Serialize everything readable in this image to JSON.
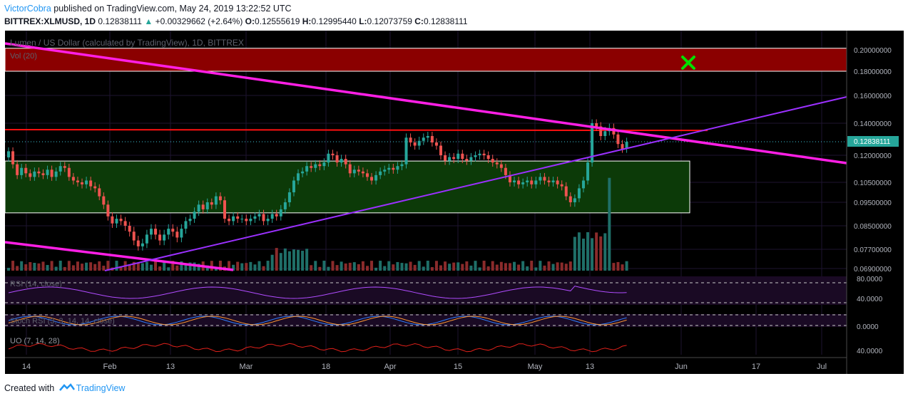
{
  "header": {
    "author": "VictorCobra",
    "published_text": "published on TradingView.com, May 24, 2019 13:22:52 UTC",
    "symbol_interval": "BITTREX:XLMUSD, 1D",
    "last_price": "0.12838111",
    "change_arrow": "▲",
    "change_text": "+0.00329662 (+2.64%)",
    "ohlc": [
      {
        "label": "O:",
        "value": "0.12555619"
      },
      {
        "label": "H:",
        "value": "0.12995440"
      },
      {
        "label": "L:",
        "value": "0.12073759"
      },
      {
        "label": "C:",
        "value": "0.12838111"
      }
    ]
  },
  "chart": {
    "title": "Lumen / US Dollar (calculated by TradingView), 1D, BITTREX",
    "vol_label": "Vol (20)",
    "rsi_label": "RSI (14, close)",
    "stoch_label": "Stoch RSI (3, 3, 14, 14, close)",
    "uo_label": "UO (7, 14, 28)",
    "price_badge": "0.12838111",
    "rsi_ticks": [
      "80.0000",
      "40.0000"
    ],
    "stoch_ticks": [
      "0.0000"
    ],
    "uo_ticks": [
      "40.0000"
    ],
    "colors": {
      "up": "#26a69a",
      "down": "#ef5350",
      "trend_magenta": "#ff1fe5",
      "trend_purple": "#9b30ff",
      "resistance_red": "#ff1010",
      "zone_red": "#8b0000",
      "zone_green": "#0c3a08",
      "marker": "#00e000"
    }
  },
  "chart_data": {
    "type": "candlestick",
    "title": "Lumen / US Dollar (calculated by TradingView), 1D, BITTREX",
    "y_axis_ticks": [
      "0.20000000",
      "0.18000000",
      "0.16000000",
      "0.14000000",
      "0.12000000",
      "0.10500000",
      "0.09500000",
      "0.08500000",
      "0.07700000",
      "0.06900000"
    ],
    "x_axis_ticks": [
      "14",
      "Feb",
      "13",
      "Mar",
      "18",
      "Apr",
      "15",
      "May",
      "13",
      "Jun",
      "17",
      "Jul"
    ],
    "ylim": [
      0.069,
      0.205
    ],
    "close_series": [
      0.1225,
      0.115,
      0.109,
      0.113,
      0.11,
      0.108,
      0.111,
      0.11,
      0.109,
      0.112,
      0.108,
      0.111,
      0.114,
      0.113,
      0.108,
      0.106,
      0.105,
      0.104,
      0.106,
      0.103,
      0.102,
      0.098,
      0.094,
      0.089,
      0.086,
      0.088,
      0.087,
      0.085,
      0.083,
      0.08,
      0.078,
      0.079,
      0.082,
      0.084,
      0.082,
      0.08,
      0.082,
      0.084,
      0.083,
      0.081,
      0.084,
      0.087,
      0.088,
      0.091,
      0.094,
      0.092,
      0.095,
      0.094,
      0.098,
      0.096,
      0.088,
      0.087,
      0.089,
      0.088,
      0.088,
      0.087,
      0.088,
      0.089,
      0.09,
      0.087,
      0.088,
      0.09,
      0.089,
      0.092,
      0.095,
      0.1,
      0.106,
      0.11,
      0.111,
      0.114,
      0.113,
      0.115,
      0.114,
      0.116,
      0.121,
      0.12,
      0.116,
      0.118,
      0.115,
      0.11,
      0.112,
      0.111,
      0.11,
      0.108,
      0.106,
      0.109,
      0.111,
      0.112,
      0.113,
      0.112,
      0.114,
      0.115,
      0.131,
      0.128,
      0.126,
      0.129,
      0.131,
      0.132,
      0.128,
      0.126,
      0.12,
      0.117,
      0.119,
      0.118,
      0.121,
      0.118,
      0.117,
      0.119,
      0.12,
      0.121,
      0.12,
      0.118,
      0.116,
      0.115,
      0.113,
      0.109,
      0.105,
      0.106,
      0.104,
      0.105,
      0.106,
      0.104,
      0.106,
      0.108,
      0.106,
      0.105,
      0.106,
      0.104,
      0.103,
      0.098,
      0.095,
      0.097,
      0.102,
      0.106,
      0.116,
      0.14,
      0.138,
      0.132,
      0.135,
      0.137,
      0.133,
      0.127,
      0.124,
      0.1284
    ],
    "annotations": [
      "Red resistance zone 0.180–0.200",
      "Green range zone 0.090–0.117",
      "Horizontal resistance near 0.136",
      "Descending magenta trendline",
      "Ascending purple trendline",
      "Green X marker near Jun"
    ]
  },
  "footer": {
    "created_with": "Created with",
    "brand": "TradingView"
  }
}
